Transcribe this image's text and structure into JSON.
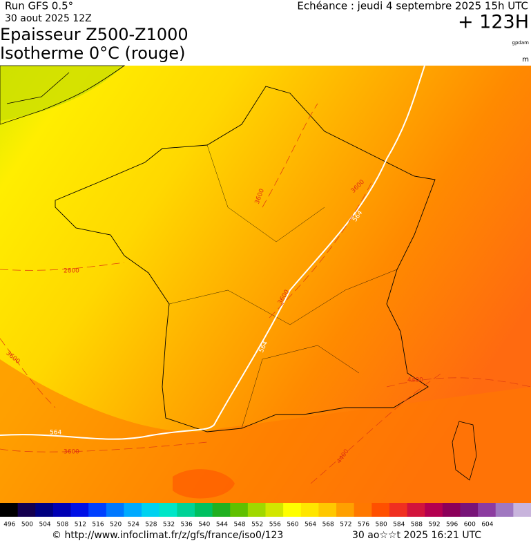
{
  "header": {
    "run": "Run GFS 0.5°",
    "date": "30 aout 2025 12Z",
    "echeance": "Echéance : jeudi 4 septembre 2025 15h UTC",
    "lead": "+ 123H",
    "title1": "Epaisseur Z500-Z1000",
    "title2": "Isotherme 0°C (rouge)",
    "unit1": "gpdam",
    "unit2": "m"
  },
  "contours": [
    {
      "label": "2800"
    },
    {
      "label": "3600"
    },
    {
      "label": "3600"
    },
    {
      "label": "3600"
    },
    {
      "label": "3600"
    },
    {
      "label": "3600"
    },
    {
      "label": "564"
    },
    {
      "label": "564"
    },
    {
      "label": "564"
    },
    {
      "label": "4400"
    },
    {
      "label": "4400"
    }
  ],
  "colorbar": {
    "labels": [
      496,
      500,
      504,
      508,
      512,
      516,
      520,
      524,
      528,
      532,
      536,
      540,
      544,
      548,
      552,
      556,
      560,
      564,
      568,
      572,
      576,
      580,
      584,
      588,
      592,
      596,
      600,
      604
    ],
    "colors": [
      "#000000",
      "#14004f",
      "#000080",
      "#0000b4",
      "#0010e6",
      "#0040ff",
      "#0078ff",
      "#00aaff",
      "#00d2f0",
      "#00e6c8",
      "#00d296",
      "#00c060",
      "#20b020",
      "#60c000",
      "#a0d800",
      "#d2e600",
      "#ffff00",
      "#ffe600",
      "#ffc800",
      "#ffa000",
      "#ff7800",
      "#ff5000",
      "#f03020",
      "#d2143c",
      "#b40050",
      "#8c005a",
      "#781478",
      "#8c3ca0",
      "#a078c0",
      "#c8b4dc"
    ]
  },
  "footer": {
    "url": "© http://www.infoclimat.fr/z/gfs/france/iso0/123",
    "stamp": "30 ao☆☆t 2025 16:21 UTC"
  }
}
